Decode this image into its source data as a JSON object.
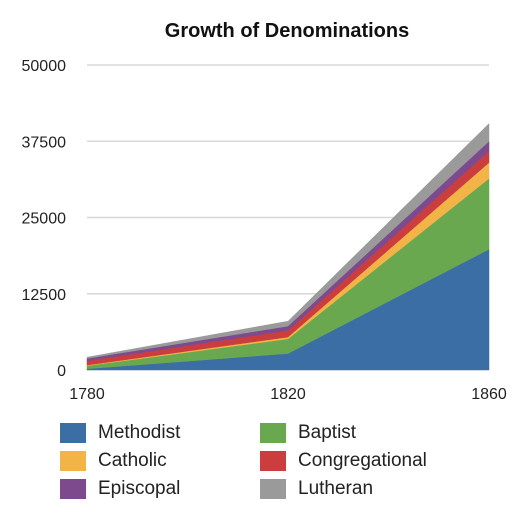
{
  "chart_data": {
    "type": "area",
    "stacked": true,
    "title": "Growth of Denominations",
    "xlabel": "",
    "ylabel": "",
    "x": [
      "1780",
      "1820",
      "1860"
    ],
    "ylim": [
      0,
      50000
    ],
    "yticks": [
      "0",
      "12500",
      "25000",
      "37500",
      "50000"
    ],
    "grid": true,
    "legend_position": "bottom",
    "series": [
      {
        "name": "Methodist",
        "color": "#3b6ea5",
        "values": [
          200,
          2700,
          19800
        ]
      },
      {
        "name": "Baptist",
        "color": "#6aa84f",
        "values": [
          500,
          2400,
          11600
        ]
      },
      {
        "name": "Catholic",
        "color": "#f2b447",
        "values": [
          100,
          300,
          2600
        ]
      },
      {
        "name": "Congregational",
        "color": "#cc3d3d",
        "values": [
          700,
          1100,
          1900
        ]
      },
      {
        "name": "Episcopal",
        "color": "#7e4a8e",
        "values": [
          400,
          700,
          1600
        ]
      },
      {
        "name": "Lutheran",
        "color": "#9a9a9a",
        "values": [
          200,
          800,
          2900
        ]
      }
    ]
  }
}
